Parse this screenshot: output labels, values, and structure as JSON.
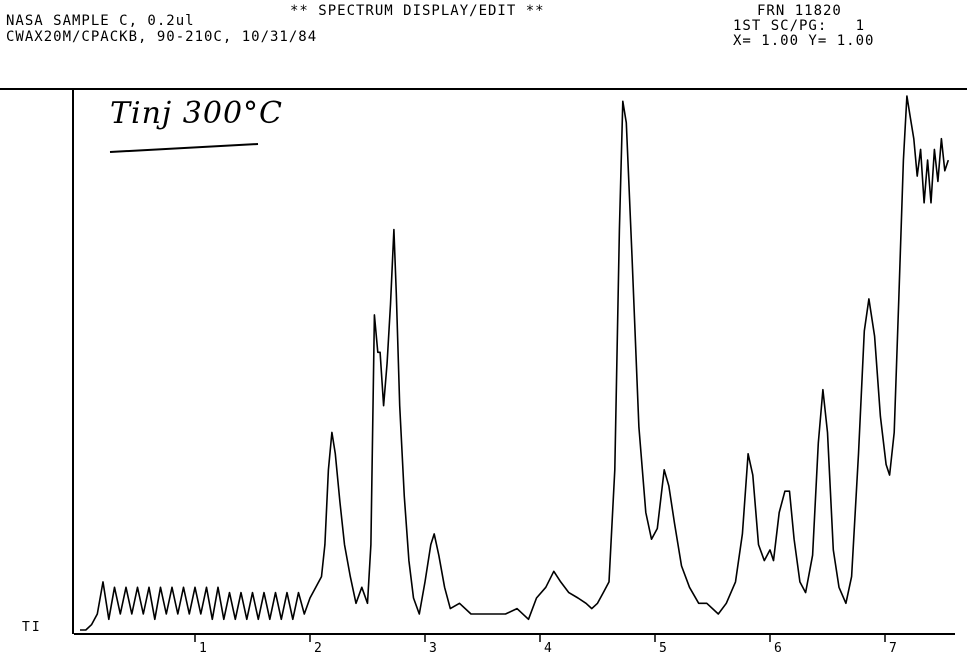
{
  "header": {
    "left_line1": "NASA SAMPLE C, 0.2ul",
    "left_line2": "CWAX20M/CPACKB, 90-210C, 10/31/84",
    "title": "** SPECTRUM DISPLAY/EDIT **",
    "frn": "FRN 11820",
    "scpg": "1ST SC/PG:   1",
    "xy": "X= 1.00 Y= 1.00"
  },
  "annotation": "Tinj 300°C",
  "chart_data": {
    "type": "line",
    "title": "",
    "xlabel": "",
    "ylabel": "TI",
    "xlim": [
      0,
      7.7
    ],
    "ylim": [
      0,
      100
    ],
    "x_ticks": [
      "1",
      "2",
      "3",
      "4",
      "5",
      "6",
      "7"
    ],
    "grid": false,
    "series": [
      {
        "name": "",
        "points": [
          [
            0.0,
            0
          ],
          [
            0.05,
            0
          ],
          [
            0.1,
            1
          ],
          [
            0.15,
            3
          ],
          [
            0.2,
            9
          ],
          [
            0.25,
            2
          ],
          [
            0.3,
            8
          ],
          [
            0.35,
            3
          ],
          [
            0.4,
            8
          ],
          [
            0.45,
            3
          ],
          [
            0.5,
            8
          ],
          [
            0.55,
            3
          ],
          [
            0.6,
            8
          ],
          [
            0.65,
            2
          ],
          [
            0.7,
            8
          ],
          [
            0.75,
            3
          ],
          [
            0.8,
            8
          ],
          [
            0.85,
            3
          ],
          [
            0.9,
            8
          ],
          [
            0.95,
            3
          ],
          [
            1.0,
            8
          ],
          [
            1.05,
            3
          ],
          [
            1.1,
            8
          ],
          [
            1.15,
            2
          ],
          [
            1.2,
            8
          ],
          [
            1.25,
            2
          ],
          [
            1.3,
            7
          ],
          [
            1.35,
            2
          ],
          [
            1.4,
            7
          ],
          [
            1.45,
            2
          ],
          [
            1.5,
            7
          ],
          [
            1.55,
            2
          ],
          [
            1.6,
            7
          ],
          [
            1.65,
            2
          ],
          [
            1.7,
            7
          ],
          [
            1.75,
            2
          ],
          [
            1.8,
            7
          ],
          [
            1.85,
            2
          ],
          [
            1.9,
            7
          ],
          [
            1.95,
            3
          ],
          [
            2.0,
            6
          ],
          [
            2.05,
            8
          ],
          [
            2.1,
            10
          ],
          [
            2.13,
            16
          ],
          [
            2.16,
            30
          ],
          [
            2.19,
            37
          ],
          [
            2.22,
            33
          ],
          [
            2.26,
            24
          ],
          [
            2.3,
            16
          ],
          [
            2.35,
            10
          ],
          [
            2.4,
            5
          ],
          [
            2.45,
            8
          ],
          [
            2.5,
            5
          ],
          [
            2.53,
            16
          ],
          [
            2.56,
            59
          ],
          [
            2.59,
            52
          ],
          [
            2.61,
            52
          ],
          [
            2.64,
            42
          ],
          [
            2.67,
            50
          ],
          [
            2.7,
            61
          ],
          [
            2.73,
            75
          ],
          [
            2.75,
            63
          ],
          [
            2.78,
            42
          ],
          [
            2.82,
            25
          ],
          [
            2.86,
            13
          ],
          [
            2.9,
            6
          ],
          [
            2.95,
            3
          ],
          [
            3.0,
            9
          ],
          [
            3.05,
            16
          ],
          [
            3.08,
            18
          ],
          [
            3.12,
            14
          ],
          [
            3.17,
            8
          ],
          [
            3.22,
            4
          ],
          [
            3.3,
            5
          ],
          [
            3.4,
            3
          ],
          [
            3.5,
            3
          ],
          [
            3.6,
            3
          ],
          [
            3.7,
            3
          ],
          [
            3.8,
            4
          ],
          [
            3.9,
            2
          ],
          [
            3.97,
            6
          ],
          [
            4.05,
            8
          ],
          [
            4.12,
            11
          ],
          [
            4.18,
            9
          ],
          [
            4.25,
            7
          ],
          [
            4.33,
            6
          ],
          [
            4.4,
            5
          ],
          [
            4.45,
            4
          ],
          [
            4.5,
            5
          ],
          [
            4.55,
            7
          ],
          [
            4.6,
            9
          ],
          [
            4.65,
            30
          ],
          [
            4.69,
            75
          ],
          [
            4.72,
            99
          ],
          [
            4.75,
            95
          ],
          [
            4.8,
            70
          ],
          [
            4.86,
            38
          ],
          [
            4.92,
            22
          ],
          [
            4.97,
            17
          ],
          [
            5.02,
            19
          ],
          [
            5.08,
            30
          ],
          [
            5.12,
            27
          ],
          [
            5.17,
            20
          ],
          [
            5.23,
            12
          ],
          [
            5.3,
            8
          ],
          [
            5.38,
            5
          ],
          [
            5.45,
            5
          ],
          [
            5.55,
            3
          ],
          [
            5.62,
            5
          ],
          [
            5.7,
            9
          ],
          [
            5.76,
            18
          ],
          [
            5.81,
            33
          ],
          [
            5.85,
            29
          ],
          [
            5.9,
            16
          ],
          [
            5.95,
            13
          ],
          [
            6.0,
            15
          ],
          [
            6.03,
            13
          ],
          [
            6.08,
            22
          ],
          [
            6.13,
            26
          ],
          [
            6.17,
            26
          ],
          [
            6.21,
            17
          ],
          [
            6.26,
            9
          ],
          [
            6.31,
            7
          ],
          [
            6.37,
            14
          ],
          [
            6.42,
            35
          ],
          [
            6.46,
            45
          ],
          [
            6.5,
            37
          ],
          [
            6.55,
            15
          ],
          [
            6.6,
            8
          ],
          [
            6.66,
            5
          ],
          [
            6.71,
            10
          ],
          [
            6.77,
            33
          ],
          [
            6.82,
            56
          ],
          [
            6.86,
            62
          ],
          [
            6.91,
            55
          ],
          [
            6.96,
            40
          ],
          [
            7.01,
            31
          ],
          [
            7.04,
            29
          ],
          [
            7.08,
            37
          ],
          [
            7.12,
            62
          ],
          [
            7.16,
            88
          ],
          [
            7.19,
            100
          ],
          [
            7.22,
            96
          ],
          [
            7.25,
            92
          ],
          [
            7.28,
            85
          ],
          [
            7.31,
            90
          ],
          [
            7.34,
            80
          ],
          [
            7.37,
            88
          ],
          [
            7.4,
            80
          ],
          [
            7.43,
            90
          ],
          [
            7.46,
            84
          ],
          [
            7.49,
            92
          ],
          [
            7.52,
            86
          ],
          [
            7.55,
            88
          ]
        ]
      }
    ]
  }
}
